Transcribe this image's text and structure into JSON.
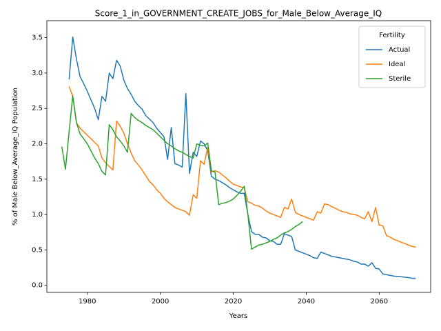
{
  "chart_data": {
    "type": "line",
    "title": "Score_1_in_GOVERNMENT_CREATE_JOBS_for_Male_Below_Average_IQ",
    "xlabel": "Years",
    "ylabel": "% of Male Below_Average_IQ Population",
    "legend_title": "Fertility",
    "legend": "upper right",
    "grid": false,
    "x": [
      1973,
      1974,
      1975,
      1976,
      1977,
      1978,
      1979,
      1980,
      1981,
      1982,
      1983,
      1984,
      1985,
      1986,
      1987,
      1988,
      1989,
      1990,
      1991,
      1992,
      1993,
      1994,
      1995,
      1996,
      1997,
      1998,
      1999,
      2000,
      2001,
      2002,
      2003,
      2004,
      2005,
      2006,
      2007,
      2008,
      2009,
      2010,
      2011,
      2012,
      2013,
      2014,
      2015,
      2016,
      2017,
      2018,
      2019,
      2020,
      2021,
      2022,
      2023,
      2024,
      2025,
      2026,
      2027,
      2028,
      2029,
      2030,
      2031,
      2032,
      2033,
      2034,
      2035,
      2036,
      2037,
      2038,
      2039,
      2040,
      2041,
      2042,
      2043,
      2044,
      2045,
      2046,
      2047,
      2048,
      2049,
      2050,
      2051,
      2052,
      2053,
      2054,
      2055,
      2056,
      2057,
      2058,
      2059,
      2060,
      2061,
      2062,
      2063,
      2064,
      2065,
      2066,
      2067,
      2068,
      2069,
      2070
    ],
    "series": [
      {
        "name": "Actual",
        "color": "#1f77b4",
        "values": [
          null,
          null,
          2.91,
          3.51,
          3.2,
          2.95,
          2.85,
          2.74,
          2.62,
          2.5,
          2.34,
          2.67,
          2.6,
          3.0,
          2.92,
          3.18,
          3.1,
          2.9,
          2.78,
          2.7,
          2.6,
          2.54,
          2.49,
          2.4,
          2.35,
          2.3,
          2.22,
          2.16,
          2.1,
          1.78,
          2.23,
          1.72,
          1.7,
          1.67,
          2.71,
          1.58,
          1.88,
          1.82,
          2.04,
          2.0,
          1.9,
          1.54,
          1.5,
          1.48,
          1.45,
          1.42,
          1.38,
          1.35,
          1.32,
          1.3,
          1.3,
          1.0,
          0.76,
          0.72,
          0.72,
          0.68,
          0.67,
          0.63,
          0.62,
          0.58,
          0.58,
          0.73,
          0.71,
          0.69,
          0.5,
          0.48,
          0.46,
          0.44,
          0.42,
          0.39,
          0.38,
          0.47,
          0.45,
          0.43,
          0.41,
          0.4,
          0.39,
          0.38,
          0.37,
          0.36,
          0.34,
          0.33,
          0.3,
          0.3,
          0.27,
          0.32,
          0.24,
          0.23,
          0.16,
          0.15,
          0.14,
          0.13,
          0.125,
          0.12,
          0.115,
          0.11,
          0.1,
          0.1
        ]
      },
      {
        "name": "Ideal",
        "color": "#ff7f0e",
        "values": [
          null,
          null,
          2.81,
          2.67,
          2.3,
          2.22,
          2.17,
          2.12,
          2.07,
          2.02,
          1.97,
          1.8,
          1.73,
          1.68,
          1.63,
          2.32,
          2.25,
          2.15,
          2.0,
          1.87,
          1.76,
          1.7,
          1.63,
          1.55,
          1.47,
          1.42,
          1.35,
          1.3,
          1.23,
          1.18,
          1.14,
          1.1,
          1.08,
          1.06,
          1.04,
          0.99,
          1.28,
          1.23,
          1.76,
          1.71,
          1.95,
          1.6,
          1.62,
          1.6,
          1.56,
          1.52,
          1.47,
          1.43,
          1.41,
          1.39,
          1.38,
          1.18,
          1.16,
          1.13,
          1.12,
          1.09,
          1.05,
          1.02,
          1.0,
          0.98,
          0.96,
          1.1,
          1.08,
          1.22,
          1.03,
          1.0,
          0.98,
          0.96,
          0.94,
          0.92,
          1.04,
          1.02,
          1.15,
          1.14,
          1.11,
          1.09,
          1.06,
          1.04,
          1.03,
          1.01,
          1.0,
          0.99,
          0.96,
          0.94,
          1.04,
          0.9,
          1.1,
          0.85,
          0.84,
          0.7,
          0.68,
          0.65,
          0.63,
          0.61,
          0.59,
          0.57,
          0.55,
          0.54
        ]
      },
      {
        "name": "Sterile",
        "color": "#2ca02c",
        "values": [
          1.96,
          1.64,
          2.17,
          2.68,
          2.3,
          2.14,
          2.07,
          2.0,
          1.9,
          1.8,
          1.72,
          1.61,
          1.56,
          2.27,
          2.2,
          2.1,
          2.04,
          1.97,
          1.88,
          2.43,
          2.37,
          2.33,
          2.3,
          2.26,
          2.23,
          2.2,
          2.15,
          2.1,
          2.05,
          2.0,
          1.97,
          1.93,
          1.9,
          1.88,
          1.85,
          1.82,
          1.8,
          2.0,
          1.98,
          1.97,
          2.01,
          1.62,
          1.6,
          1.14,
          1.16,
          1.17,
          1.19,
          1.22,
          1.27,
          1.33,
          1.4,
          1.0,
          0.51,
          0.54,
          0.57,
          0.58,
          0.6,
          0.62,
          0.65,
          0.67,
          0.71,
          0.74,
          0.76,
          0.79,
          0.83,
          0.86,
          0.9,
          null,
          null,
          null,
          null,
          null,
          null,
          null,
          null,
          null,
          null,
          null,
          null,
          null,
          null,
          null,
          null,
          null,
          null,
          null,
          null,
          null,
          null,
          null,
          null,
          null,
          null,
          null,
          null,
          null,
          null,
          null
        ]
      }
    ],
    "xlim": [
      1968.9,
      2074.1
    ],
    "xticks": [
      1980,
      2000,
      2020,
      2040,
      2060
    ],
    "ylim": [
      -0.1,
      3.74
    ],
    "yticks": [
      {
        "value": 0,
        "label": "0.0"
      },
      0.5,
      {
        "value": 1,
        "label": "1.0"
      },
      1.5,
      {
        "value": 2,
        "label": "2.0"
      },
      2.5,
      {
        "value": 3,
        "label": "3.0"
      },
      3.5
    ]
  }
}
